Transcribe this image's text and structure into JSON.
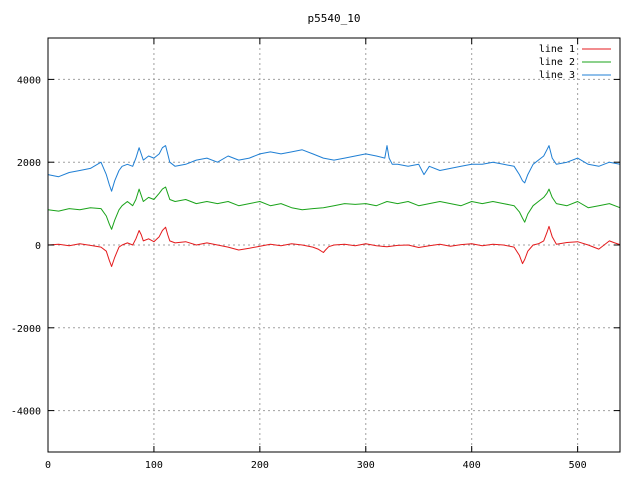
{
  "chart_data": {
    "type": "line",
    "title": "p5540_10",
    "xlabel": "",
    "ylabel": "",
    "xlim": [
      0,
      540
    ],
    "ylim": [
      -5000,
      5000
    ],
    "x_ticks": [
      0,
      100,
      200,
      300,
      400,
      500
    ],
    "y_ticks": [
      -4000,
      -2000,
      0,
      2000,
      4000
    ],
    "grid": true,
    "legend_position": "top-right",
    "series": [
      {
        "name": "line 1",
        "color": "#e41a1c",
        "x": [
          0,
          10,
          20,
          30,
          40,
          50,
          55,
          58,
          60,
          63,
          67,
          70,
          75,
          80,
          83,
          86,
          88,
          90,
          95,
          100,
          105,
          108,
          111,
          113,
          115,
          120,
          130,
          140,
          150,
          160,
          170,
          180,
          190,
          200,
          210,
          220,
          230,
          240,
          250,
          255,
          260,
          262,
          265,
          270,
          280,
          290,
          300,
          310,
          320,
          330,
          340,
          350,
          360,
          370,
          380,
          390,
          400,
          410,
          420,
          430,
          440,
          445,
          448,
          450,
          453,
          458,
          463,
          468,
          471,
          473,
          476,
          480,
          490,
          500,
          510,
          520,
          530,
          535,
          540
        ],
        "y": [
          0,
          20,
          -20,
          30,
          -10,
          -50,
          -150,
          -380,
          -520,
          -300,
          -50,
          0,
          50,
          0,
          150,
          350,
          250,
          100,
          150,
          80,
          200,
          350,
          430,
          250,
          100,
          50,
          80,
          0,
          50,
          0,
          -50,
          -120,
          -80,
          -30,
          20,
          -20,
          30,
          0,
          -50,
          -100,
          -180,
          -120,
          -40,
          0,
          20,
          -20,
          30,
          -20,
          -40,
          -10,
          0,
          -60,
          -20,
          20,
          -30,
          10,
          30,
          -20,
          20,
          0,
          -50,
          -250,
          -450,
          -350,
          -150,
          0,
          30,
          100,
          300,
          450,
          200,
          20,
          60,
          80,
          0,
          -100,
          100,
          50,
          10
        ]
      },
      {
        "name": "line 2",
        "color": "#1aa31a",
        "x": [
          0,
          10,
          20,
          30,
          40,
          50,
          55,
          58,
          60,
          63,
          67,
          70,
          75,
          80,
          83,
          86,
          88,
          90,
          95,
          100,
          105,
          108,
          111,
          113,
          115,
          120,
          130,
          140,
          150,
          160,
          170,
          180,
          190,
          200,
          210,
          220,
          230,
          240,
          250,
          260,
          270,
          280,
          290,
          300,
          310,
          320,
          330,
          340,
          350,
          360,
          370,
          380,
          390,
          400,
          410,
          420,
          430,
          440,
          445,
          448,
          450,
          453,
          458,
          463,
          468,
          471,
          473,
          476,
          480,
          490,
          500,
          510,
          520,
          530,
          540
        ],
        "y": [
          850,
          820,
          880,
          850,
          900,
          880,
          700,
          500,
          380,
          600,
          850,
          950,
          1050,
          950,
          1100,
          1350,
          1200,
          1050,
          1150,
          1100,
          1250,
          1350,
          1400,
          1250,
          1100,
          1050,
          1100,
          1000,
          1050,
          1000,
          1050,
          950,
          1000,
          1050,
          950,
          1000,
          900,
          850,
          880,
          900,
          950,
          1000,
          980,
          1000,
          950,
          1050,
          1000,
          1050,
          950,
          1000,
          1050,
          1000,
          950,
          1050,
          1000,
          1050,
          1000,
          950,
          800,
          650,
          550,
          750,
          950,
          1050,
          1150,
          1250,
          1350,
          1150,
          1000,
          950,
          1050,
          900,
          950,
          1000,
          900
        ]
      },
      {
        "name": "line 3",
        "color": "#1f7fd4",
        "x": [
          0,
          10,
          20,
          30,
          40,
          50,
          55,
          58,
          60,
          63,
          67,
          70,
          75,
          80,
          83,
          86,
          88,
          90,
          95,
          100,
          105,
          108,
          111,
          113,
          115,
          120,
          130,
          140,
          150,
          160,
          170,
          180,
          190,
          200,
          210,
          220,
          230,
          240,
          250,
          260,
          270,
          280,
          290,
          300,
          310,
          318,
          320,
          322,
          325,
          330,
          340,
          350,
          355,
          360,
          370,
          380,
          390,
          400,
          410,
          420,
          430,
          440,
          445,
          448,
          450,
          453,
          458,
          463,
          468,
          471,
          473,
          476,
          480,
          490,
          500,
          510,
          520,
          530,
          540
        ],
        "y": [
          1700,
          1650,
          1750,
          1800,
          1850,
          2000,
          1700,
          1450,
          1300,
          1550,
          1800,
          1900,
          1950,
          1900,
          2100,
          2350,
          2200,
          2050,
          2150,
          2100,
          2200,
          2350,
          2400,
          2200,
          2000,
          1900,
          1950,
          2050,
          2100,
          2000,
          2150,
          2050,
          2100,
          2200,
          2250,
          2200,
          2250,
          2300,
          2200,
          2100,
          2050,
          2100,
          2150,
          2200,
          2150,
          2100,
          2400,
          2100,
          1950,
          1950,
          1900,
          1950,
          1700,
          1900,
          1800,
          1850,
          1900,
          1950,
          1950,
          2000,
          1950,
          1900,
          1700,
          1550,
          1500,
          1700,
          1950,
          2050,
          2150,
          2300,
          2400,
          2100,
          1950,
          2000,
          2100,
          1950,
          1900,
          2000,
          1950
        ]
      }
    ]
  }
}
